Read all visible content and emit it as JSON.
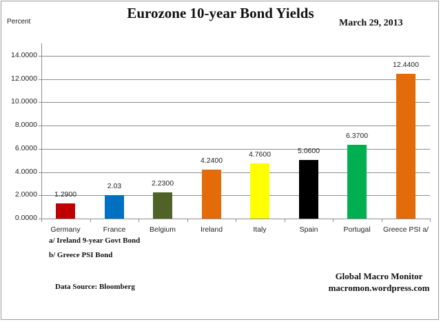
{
  "chart_data": {
    "type": "bar",
    "title": "Eurozone 10-year Bond Yields",
    "subtitle": "March 29, 2013",
    "xlabel": "",
    "ylabel": "Percent",
    "ylim": [
      0,
      14
    ],
    "yticks": [
      "0.0000",
      "2.0000",
      "4.0000",
      "6.0000",
      "8.0000",
      "10.0000",
      "12.0000",
      "14.0000"
    ],
    "grid": true,
    "legend": null,
    "categories": [
      "Germany",
      "France",
      "Belgium",
      "Ireland",
      "Italy",
      "Spain",
      "Portugal",
      "Greece PSI a/"
    ],
    "values": [
      1.29,
      2.03,
      2.23,
      4.24,
      4.76,
      5.06,
      6.37,
      12.44
    ],
    "value_labels": [
      "1.2900",
      "2.03",
      "2.2300",
      "4.2400",
      "4.7600",
      "5.0600",
      "6.3700",
      "12.4400"
    ],
    "colors": [
      "#c00000",
      "#0070c0",
      "#4f6228",
      "#e36c09",
      "#ffff00",
      "#000000",
      "#00b050",
      "#e36c09"
    ],
    "annotations": [
      "a/ Ireland 9-year Govt Bond",
      "b/ Greece PSI Bond",
      "Data Source:  Bloomberg",
      "Global Macro Monitor",
      "macromon.wordpress.com"
    ]
  },
  "header": {
    "title": "Eurozone 10-year Bond Yields",
    "date": "March 29, 2013",
    "ylabel": "Percent"
  },
  "notes": {
    "a": "a/ Ireland 9-year Govt Bond",
    "b": "b/ Greece PSI Bond"
  },
  "footer": {
    "source": "Data Source:  Bloomberg",
    "brand_name": "Global Macro Monitor",
    "brand_url": "macromon.wordpress.com"
  }
}
